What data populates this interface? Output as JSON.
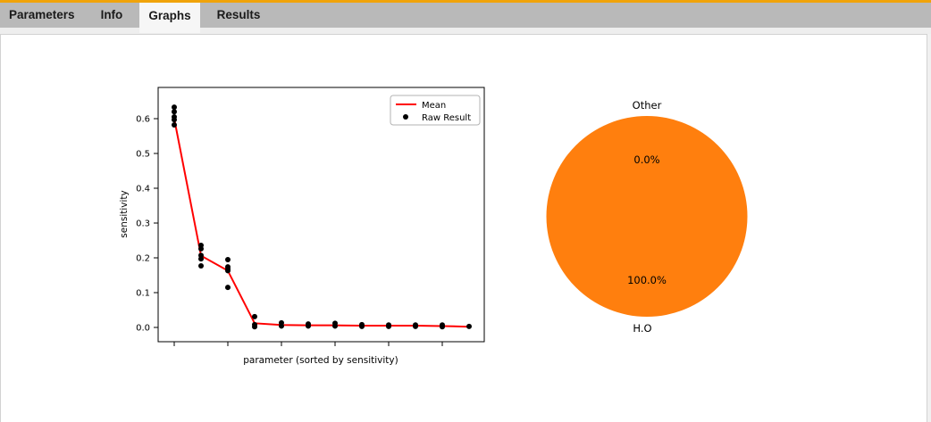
{
  "tabs": {
    "items": [
      {
        "label": "Parameters",
        "active": false
      },
      {
        "label": "Info",
        "active": false
      },
      {
        "label": "Graphs",
        "active": true
      },
      {
        "label": "Results",
        "active": false
      }
    ]
  },
  "colors": {
    "accent_orange": "#f0a30a",
    "tabbar_gray": "#b9b9b9",
    "active_tab": "#f6f6f6",
    "panel_border": "#d2d2d2",
    "mean_red": "#ff0000",
    "raw_black": "#000000",
    "pie_orange": "#ff7f0e"
  },
  "chart_data": [
    {
      "type": "line",
      "title": "",
      "xlabel": "parameter (sorted by sensitivity)",
      "ylabel": "sensitivity",
      "x": [
        1,
        2,
        3,
        4,
        5,
        6,
        7,
        8,
        9,
        10,
        11,
        12
      ],
      "yticks": [
        0.0,
        0.1,
        0.2,
        0.3,
        0.4,
        0.5,
        0.6
      ],
      "ytick_labels": [
        "0.0",
        "0.1",
        "0.2",
        "0.3",
        "0.4",
        "0.5",
        "0.6"
      ],
      "ylim": [
        -0.04,
        0.69
      ],
      "xticks_at": [
        1,
        3,
        5,
        7,
        9,
        11
      ],
      "xtick_labels": [],
      "grid": false,
      "legend": {
        "position": "upper right",
        "entries": [
          "Mean",
          "Raw Result"
        ]
      },
      "series": [
        {
          "name": "Mean",
          "style": "line",
          "color": "#ff0000",
          "values": [
            0.6,
            0.206,
            0.163,
            0.012,
            0.007,
            0.006,
            0.006,
            0.005,
            0.005,
            0.005,
            0.004,
            0.002
          ]
        },
        {
          "name": "Raw Result",
          "style": "scatter",
          "color": "#000000",
          "points": [
            [
              1,
              0.633
            ],
            [
              1,
              0.62
            ],
            [
              1,
              0.605
            ],
            [
              1,
              0.597
            ],
            [
              1,
              0.582
            ],
            [
              2,
              0.236
            ],
            [
              2,
              0.226
            ],
            [
              2,
              0.207
            ],
            [
              2,
              0.197
            ],
            [
              2,
              0.177
            ],
            [
              3,
              0.195
            ],
            [
              3,
              0.174
            ],
            [
              3,
              0.168
            ],
            [
              3,
              0.163
            ],
            [
              3,
              0.115
            ],
            [
              4,
              0.031
            ],
            [
              4,
              0.008
            ],
            [
              4,
              0.002
            ],
            [
              5,
              0.013
            ],
            [
              5,
              0.004
            ],
            [
              6,
              0.01
            ],
            [
              6,
              0.004
            ],
            [
              7,
              0.012
            ],
            [
              7,
              0.004
            ],
            [
              8,
              0.008
            ],
            [
              8,
              0.003
            ],
            [
              9,
              0.007
            ],
            [
              9,
              0.003
            ],
            [
              10,
              0.007
            ],
            [
              10,
              0.003
            ],
            [
              11,
              0.007
            ],
            [
              11,
              0.002
            ],
            [
              12,
              0.003
            ]
          ]
        }
      ]
    },
    {
      "type": "pie",
      "labels": [
        "Other",
        "H.O"
      ],
      "values": [
        0.0,
        100.0
      ],
      "pct_labels": [
        "0.0%",
        "100.0%"
      ],
      "color": "#ff7f0e",
      "startangle": 90
    }
  ]
}
